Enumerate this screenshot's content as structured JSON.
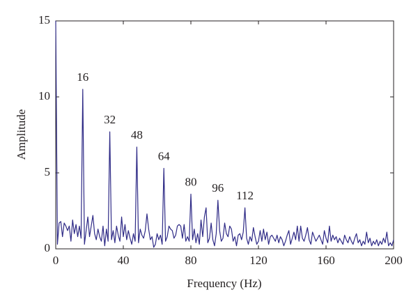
{
  "chart_data": {
    "type": "line",
    "xlabel": "Frequency (Hz)",
    "ylabel": "Amplitude",
    "color": "#2e2a86",
    "x": [
      0,
      1,
      2,
      3,
      4,
      5,
      6,
      7,
      8,
      9,
      10,
      11,
      12,
      13,
      14,
      15,
      16,
      17,
      18,
      19,
      20,
      21,
      22,
      23,
      24,
      25,
      26,
      27,
      28,
      29,
      30,
      31,
      32,
      33,
      34,
      35,
      36,
      37,
      38,
      39,
      40,
      41,
      42,
      43,
      44,
      45,
      46,
      47,
      48,
      49,
      50,
      51,
      52,
      53,
      54,
      55,
      56,
      57,
      58,
      59,
      60,
      61,
      62,
      63,
      64,
      65,
      66,
      67,
      68,
      69,
      70,
      71,
      72,
      73,
      74,
      75,
      76,
      77,
      78,
      79,
      80,
      81,
      82,
      83,
      84,
      85,
      86,
      87,
      88,
      89,
      90,
      91,
      92,
      93,
      94,
      95,
      96,
      97,
      98,
      99,
      100,
      101,
      102,
      103,
      104,
      105,
      106,
      107,
      108,
      109,
      110,
      111,
      112,
      113,
      114,
      115,
      116,
      117,
      118,
      119,
      120,
      121,
      122,
      123,
      124,
      125,
      126,
      127,
      128,
      129,
      130,
      131,
      132,
      133,
      134,
      135,
      136,
      137,
      138,
      139,
      140,
      141,
      142,
      143,
      144,
      145,
      146,
      147,
      148,
      149,
      150,
      151,
      152,
      153,
      154,
      155,
      156,
      157,
      158,
      159,
      160,
      161,
      162,
      163,
      164,
      165,
      166,
      167,
      168,
      169,
      170,
      171,
      172,
      173,
      174,
      175,
      176,
      177,
      178,
      179,
      180,
      181,
      182,
      183,
      184,
      185,
      186,
      187,
      188,
      189,
      190,
      191,
      192,
      193,
      194,
      195,
      196,
      197,
      198,
      199,
      200
    ],
    "values": [
      15,
      0.3,
      1.7,
      1.8,
      0.8,
      1.7,
      1.5,
      1.2,
      1.5,
      0.5,
      1.9,
      1.0,
      1.6,
      0.8,
      1.5,
      0.7,
      10.5,
      0.3,
      1.2,
      2.1,
      0.8,
      1.5,
      2.2,
      1.0,
      0.6,
      1.3,
      0.8,
      0.5,
      1.5,
      0.2,
      1.3,
      0.5,
      7.7,
      0.6,
      1.2,
      0.4,
      1.5,
      0.9,
      0.5,
      2.1,
      0.8,
      1.6,
      0.6,
      1.2,
      0.7,
      0.3,
      1.0,
      0.5,
      6.7,
      0.4,
      1.3,
      0.9,
      0.7,
      1.2,
      2.3,
      1.3,
      0.6,
      0.8,
      0.1,
      0.3,
      1.0,
      0.6,
      0.9,
      0.3,
      5.3,
      0.5,
      0.8,
      1.5,
      1.3,
      1.2,
      0.7,
      0.9,
      1.5,
      1.6,
      1.5,
      0.7,
      1.6,
      0.5,
      0.8,
      0.5,
      3.6,
      0.6,
      1.3,
      0.4,
      1.0,
      0.3,
      1.9,
      0.8,
      2.1,
      2.7,
      0.4,
      0.7,
      1.7,
      0.6,
      0.2,
      1.0,
      3.2,
      1.2,
      0.5,
      0.7,
      1.7,
      1.0,
      0.8,
      1.5,
      1.3,
      0.5,
      0.8,
      0.2,
      0.9,
      1.0,
      0.6,
      1.1,
      2.7,
      0.7,
      0.3,
      0.8,
      0.5,
      1.4,
      0.8,
      0.3,
      0.5,
      1.2,
      0.5,
      1.3,
      0.6,
      1.1,
      0.3,
      0.8,
      0.9,
      0.7,
      0.5,
      0.9,
      0.4,
      0.8,
      0.6,
      0.2,
      0.5,
      0.9,
      1.2,
      0.3,
      0.7,
      1.1,
      0.6,
      1.5,
      0.5,
      1.5,
      0.7,
      0.5,
      0.9,
      1.4,
      0.6,
      0.3,
      1.1,
      0.8,
      0.5,
      0.7,
      0.9,
      0.6,
      0.3,
      1.2,
      0.7,
      0.4,
      1.5,
      0.5,
      0.9,
      0.6,
      0.8,
      0.4,
      0.7,
      0.5,
      0.3,
      0.9,
      0.6,
      0.4,
      0.8,
      0.5,
      0.3,
      0.7,
      1.0,
      0.4,
      0.6,
      0.2,
      0.5,
      0.3,
      1.1,
      0.4,
      0.7,
      0.2,
      0.5,
      0.3,
      0.6,
      0.2,
      0.5,
      0.3,
      0.7,
      0.4,
      1.1,
      0.2,
      0.4,
      0.2,
      0.6
    ],
    "annotations": [
      {
        "text": "16",
        "x": 16
      },
      {
        "text": "32",
        "x": 32
      },
      {
        "text": "48",
        "x": 48
      },
      {
        "text": "64",
        "x": 64
      },
      {
        "text": "80",
        "x": 80
      },
      {
        "text": "96",
        "x": 96
      },
      {
        "text": "112",
        "x": 112
      }
    ],
    "xlim": [
      0,
      200
    ],
    "xticks": [
      0,
      40,
      80,
      120,
      160,
      200
    ],
    "ylim": [
      0,
      15
    ],
    "yticks": [
      0,
      5,
      10,
      15
    ]
  }
}
